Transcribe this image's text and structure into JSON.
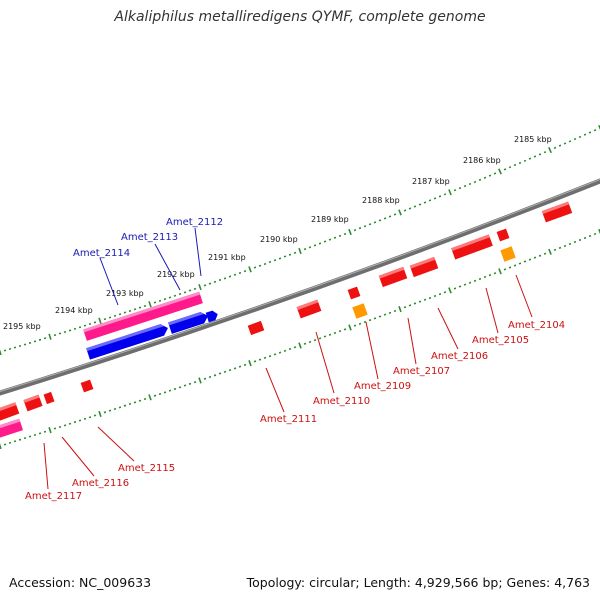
{
  "title": "Alkaliphilus metalliredigens QYMF, complete genome",
  "footer": {
    "accession": "Accession: NC_009633",
    "topology": "Topology: circular; Length: 4,929,566 bp; Genes: 4,763"
  },
  "colors": {
    "backbone": "#6e6e6e",
    "ticks": "#2e8b2e",
    "forward_label": "#1a1ab4",
    "reverse_label": "#cc1111",
    "gene_red": "#ee1111",
    "gene_orange": "#ff9900",
    "gene_pink": "#ff1a8c",
    "gene_blue": "#0000ee"
  },
  "tick_labels": [
    "2185 kbp",
    "2186 kbp",
    "2187 kbp",
    "2188 kbp",
    "2189 kbp",
    "2190 kbp",
    "2191 kbp",
    "2192 kbp",
    "2193 kbp",
    "2194 kbp",
    "2195 kbp"
  ],
  "forward_gene_labels": [
    "Amet_2112",
    "Amet_2113",
    "Amet_2114"
  ],
  "reverse_gene_labels": [
    "Amet_2104",
    "Amet_2105",
    "Amet_2106",
    "Amet_2107",
    "Amet_2109",
    "Amet_2110",
    "Amet_2111",
    "Amet_2115",
    "Amet_2116",
    "Amet_2117"
  ]
}
